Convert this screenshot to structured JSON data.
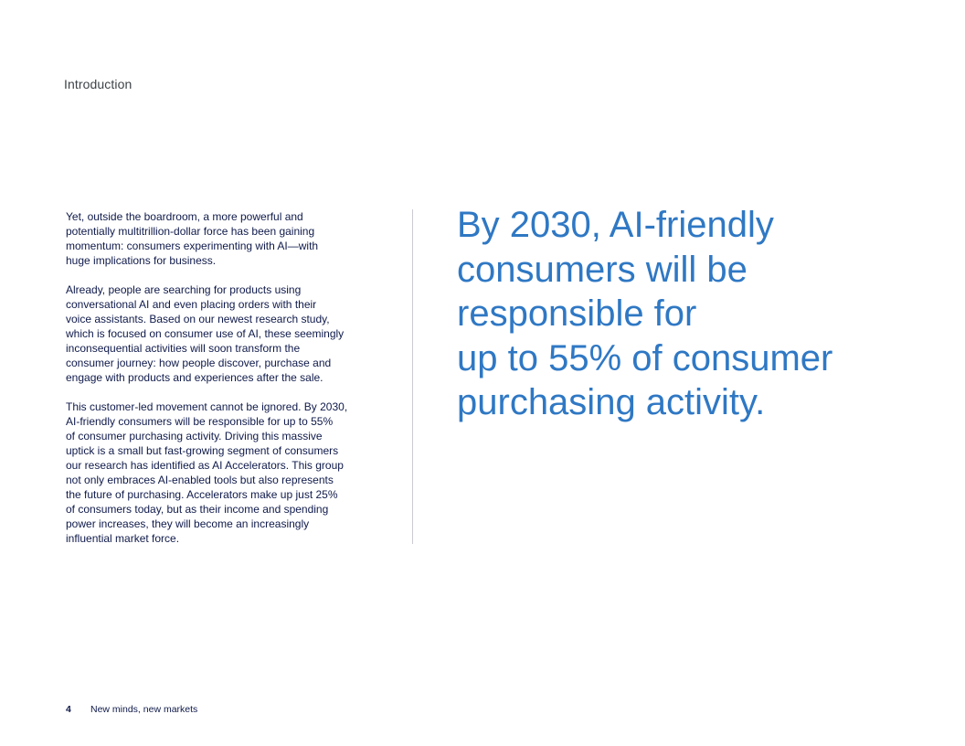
{
  "header": {
    "section_label": "Introduction"
  },
  "body": {
    "paragraphs": [
      "Yet, outside the boardroom, a more powerful and\npotentially multitrillion-dollar force has been gaining\nmomentum: consumers experimenting with AI—with\nhuge implications for business.",
      "Already, people are searching for products using\nconversational AI and even placing orders with their\nvoice assistants. Based on our newest research study,\nwhich is focused on consumer use of AI, these seemingly\ninconsequential activities will soon transform the\nconsumer journey: how people discover, purchase and\nengage with products and experiences after the sale.",
      "This customer-led movement cannot be ignored. By 2030,\nAI-friendly consumers will be responsible for up to 55%\nof consumer purchasing activity. Driving this massive\nuptick is a small but fast-growing segment of consumers\nour research has identified as AI Accelerators. This group\nnot only embraces AI-enabled tools but also represents\nthe future of purchasing. Accelerators make up just 25%\nof consumers today, but as their income and spending\npower increases, they will become an increasingly\ninfluential market force."
    ]
  },
  "pull_quote": {
    "text": "By 2030, AI-friendly\nconsumers will be\nresponsible for\nup to 55% of consumer\npurchasing activity."
  },
  "footer": {
    "page_number": "4",
    "publication_title": "New minds, new markets"
  },
  "colors": {
    "quote_blue": "#2f78c4",
    "body_navy": "#0f1a4a",
    "divider_gray": "#c9ccd1"
  }
}
